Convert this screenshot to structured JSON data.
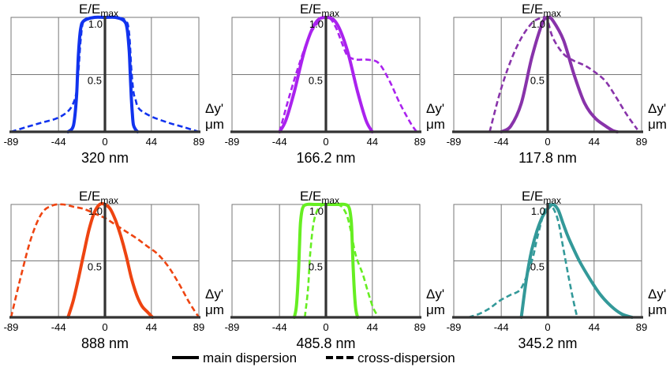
{
  "figure": {
    "legend": {
      "main": "main dispersion",
      "cross": "cross-dispersion"
    }
  },
  "chart_data": [
    {
      "type": "line",
      "title": "320 nm",
      "color": "#1133ee",
      "ylabel_main": "E/E",
      "ylabel_sub": "max",
      "xlabel_top": "Δy'",
      "xlabel_unit": "μm",
      "xlim": [
        -89,
        89
      ],
      "ylim": [
        0,
        1.0
      ],
      "xticks": [
        "-89",
        "-44",
        "0",
        "44",
        "89"
      ],
      "yticks": [
        "0.5",
        "1.0"
      ],
      "series": [
        {
          "name": "main dispersion",
          "style": "solid",
          "x": [
            -35,
            -31,
            -29,
            -27,
            -26,
            -25,
            -23,
            -20,
            -10,
            0,
            10,
            18,
            21,
            23,
            24,
            25,
            26,
            27,
            29,
            31
          ],
          "y": [
            0,
            0.03,
            0.1,
            0.3,
            0.5,
            0.7,
            0.9,
            0.97,
            1,
            1,
            1,
            0.97,
            0.9,
            0.7,
            0.5,
            0.3,
            0.15,
            0.06,
            0.02,
            0
          ]
        },
        {
          "name": "cross-dispersion",
          "style": "dashed",
          "x": [
            -89,
            -75,
            -60,
            -45,
            -35,
            -30,
            -27,
            -25,
            -23,
            -20,
            -10,
            0,
            10,
            20,
            23,
            25,
            27,
            29,
            31,
            35,
            45,
            60,
            75,
            89
          ],
          "y": [
            0,
            0.04,
            0.08,
            0.12,
            0.18,
            0.25,
            0.35,
            0.55,
            0.8,
            0.97,
            1,
            1,
            1,
            0.97,
            0.85,
            0.55,
            0.35,
            0.28,
            0.22,
            0.18,
            0.13,
            0.08,
            0.04,
            0
          ]
        }
      ]
    },
    {
      "type": "line",
      "title": "166.2 nm",
      "color": "#aa22ee",
      "ylabel_main": "E/E",
      "ylabel_sub": "max",
      "xlabel_top": "Δy'",
      "xlabel_unit": "μm",
      "xlim": [
        -89,
        89
      ],
      "ylim": [
        0,
        1.0
      ],
      "xticks": [
        "-89",
        "-44",
        "0",
        "44",
        "89"
      ],
      "yticks": [
        "0.5",
        "1.0"
      ],
      "series": [
        {
          "name": "main dispersion",
          "style": "solid",
          "x": [
            -44,
            -38,
            -30,
            -20,
            -10,
            0,
            10,
            20,
            30,
            38,
            44
          ],
          "y": [
            0,
            0.1,
            0.35,
            0.72,
            0.95,
            1,
            0.95,
            0.72,
            0.35,
            0.1,
            0
          ]
        },
        {
          "name": "cross-dispersion",
          "style": "dashed",
          "x": [
            -44,
            -35,
            -25,
            -15,
            -5,
            0,
            5,
            10,
            15,
            20,
            25,
            30,
            40,
            50,
            60,
            70,
            80,
            86
          ],
          "y": [
            0,
            0.3,
            0.6,
            0.85,
            0.98,
            1,
            0.98,
            0.9,
            0.78,
            0.67,
            0.64,
            0.63,
            0.63,
            0.6,
            0.45,
            0.25,
            0.08,
            0
          ]
        }
      ]
    },
    {
      "type": "line",
      "title": "117.8 nm",
      "color": "#8833aa",
      "ylabel_main": "E/E",
      "ylabel_sub": "max",
      "xlabel_top": "Δy'",
      "xlabel_unit": "μm",
      "xlim": [
        -89,
        89
      ],
      "ylim": [
        0,
        1.0
      ],
      "xticks": [
        "-89",
        "-44",
        "0",
        "44",
        "89"
      ],
      "yticks": [
        "0.5",
        "1.0"
      ],
      "series": [
        {
          "name": "main dispersion",
          "style": "solid",
          "x": [
            -44,
            -35,
            -25,
            -15,
            -5,
            0,
            5,
            15,
            25,
            35,
            45,
            55,
            62,
            66
          ],
          "y": [
            0,
            0.05,
            0.25,
            0.65,
            0.95,
            1,
            0.97,
            0.8,
            0.5,
            0.25,
            0.12,
            0.05,
            0.01,
            0
          ]
        },
        {
          "name": "cross-dispersion",
          "style": "dashed",
          "x": [
            -55,
            -45,
            -35,
            -25,
            -15,
            -8,
            -3,
            0,
            5,
            15,
            25,
            35,
            45,
            55,
            65,
            75,
            85
          ],
          "y": [
            0,
            0.35,
            0.62,
            0.82,
            0.95,
            0.99,
            1,
            0.97,
            0.82,
            0.68,
            0.62,
            0.58,
            0.52,
            0.44,
            0.3,
            0.15,
            0.02
          ]
        }
      ]
    },
    {
      "type": "line",
      "title": "888 nm",
      "color": "#ee4411",
      "ylabel_main": "E/E",
      "ylabel_sub": "max",
      "xlabel_top": "Δy'",
      "xlabel_unit": "μm",
      "xlim": [
        -89,
        89
      ],
      "ylim": [
        0,
        1.0
      ],
      "xticks": [
        "-89",
        "-44",
        "0",
        "44",
        "89"
      ],
      "yticks": [
        "0.5",
        "1.0"
      ],
      "series": [
        {
          "name": "main dispersion",
          "style": "solid",
          "x": [
            -35,
            -30,
            -25,
            -20,
            -15,
            -10,
            -5,
            0,
            5,
            10,
            15,
            20,
            25,
            30,
            35,
            40,
            45
          ],
          "y": [
            0,
            0.15,
            0.35,
            0.57,
            0.78,
            0.93,
            1,
            1,
            0.96,
            0.86,
            0.72,
            0.55,
            0.35,
            0.2,
            0.1,
            0.05,
            0
          ]
        },
        {
          "name": "cross-dispersion",
          "style": "dashed",
          "x": [
            -89,
            -80,
            -70,
            -60,
            -50,
            -40,
            -30,
            -20,
            -10,
            0,
            10,
            20,
            30,
            40,
            50,
            60,
            70,
            80,
            89
          ],
          "y": [
            0,
            0.35,
            0.7,
            0.92,
            0.99,
            1,
            0.98,
            0.96,
            0.92,
            0.88,
            0.82,
            0.76,
            0.7,
            0.63,
            0.56,
            0.45,
            0.3,
            0.13,
            0
          ]
        }
      ]
    },
    {
      "type": "line",
      "title": "485.8 nm",
      "color": "#66ee22",
      "ylabel_main": "E/E",
      "ylabel_sub": "max",
      "xlabel_top": "Δy'",
      "xlabel_unit": "μm",
      "xlim": [
        -89,
        89
      ],
      "ylim": [
        0,
        1.0
      ],
      "xticks": [
        "-89",
        "-44",
        "0",
        "44",
        "89"
      ],
      "yticks": [
        "0.5",
        "1.0"
      ],
      "series": [
        {
          "name": "main dispersion",
          "style": "solid",
          "x": [
            -30,
            -28,
            -26,
            -25,
            -24,
            -22,
            -18,
            -10,
            0,
            10,
            18,
            22,
            24,
            25,
            26,
            28,
            30
          ],
          "y": [
            0,
            0.1,
            0.4,
            0.65,
            0.85,
            0.97,
            1,
            1,
            1,
            1,
            1,
            0.97,
            0.85,
            0.65,
            0.4,
            0.1,
            0
          ]
        },
        {
          "name": "cross-dispersion",
          "style": "dashed",
          "x": [
            -20,
            -17,
            -15,
            -12,
            -8,
            -2,
            5,
            10,
            15,
            20,
            24,
            27,
            30,
            35,
            40,
            45,
            50
          ],
          "y": [
            0,
            0.25,
            0.55,
            0.82,
            0.95,
            1,
            1,
            1,
            0.98,
            0.9,
            0.75,
            0.6,
            0.5,
            0.38,
            0.22,
            0.08,
            0
          ]
        }
      ]
    },
    {
      "type": "line",
      "title": "345.2 nm",
      "color": "#339999",
      "ylabel_main": "E/E",
      "ylabel_sub": "max",
      "xlabel_top": "Δy'",
      "xlabel_unit": "μm",
      "xlim": [
        -89,
        89
      ],
      "ylim": [
        0,
        1.0
      ],
      "xticks": [
        "-89",
        "-44",
        "0",
        "44",
        "89"
      ],
      "yticks": [
        "0.5",
        "1.0"
      ],
      "series": [
        {
          "name": "main dispersion",
          "style": "solid",
          "x": [
            -25,
            -20,
            -15,
            -10,
            -5,
            0,
            5,
            10,
            15,
            20,
            30,
            40,
            50,
            60,
            70,
            80
          ],
          "y": [
            0,
            0.35,
            0.6,
            0.77,
            0.89,
            0.96,
            1,
            0.95,
            0.82,
            0.7,
            0.5,
            0.34,
            0.2,
            0.1,
            0.03,
            0
          ]
        },
        {
          "name": "cross-dispersion",
          "style": "dashed",
          "x": [
            -75,
            -65,
            -55,
            -45,
            -35,
            -25,
            -15,
            -10,
            -5,
            0,
            5,
            10,
            15,
            20,
            25,
            28
          ],
          "y": [
            0,
            0.03,
            0.08,
            0.15,
            0.2,
            0.26,
            0.5,
            0.7,
            0.88,
            1,
            0.97,
            0.85,
            0.6,
            0.35,
            0.12,
            0
          ]
        }
      ]
    }
  ]
}
